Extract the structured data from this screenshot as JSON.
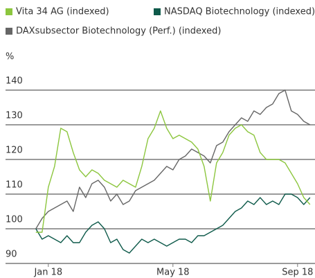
{
  "chart_data": {
    "type": "line",
    "y_unit": "%",
    "x": [
      -0.4,
      -0.2,
      0,
      0.2,
      0.4,
      0.6,
      0.8,
      1,
      1.2,
      1.4,
      1.6,
      1.8,
      2,
      2.2,
      2.4,
      2.6,
      2.8,
      3,
      3.2,
      3.4,
      3.6,
      3.8,
      4,
      4.2,
      4.4,
      4.6,
      4.8,
      5,
      5.2,
      5.4,
      5.6,
      5.8,
      6,
      6.2,
      6.4,
      6.6,
      6.8,
      7,
      7.2,
      7.4,
      7.6,
      7.8,
      8,
      8.2,
      8.4
    ],
    "series": [
      {
        "name": "Vita 34 AG (indexed)",
        "color": "#8cc63e",
        "values": [
          99,
          99,
          112,
          118,
          129,
          128,
          122,
          117,
          115,
          117,
          116,
          114,
          113,
          112,
          114,
          113,
          112,
          118,
          126,
          129,
          134,
          129,
          126,
          127,
          126,
          125,
          123,
          118,
          108,
          119,
          122,
          127,
          129,
          130,
          128,
          127,
          122,
          120,
          120,
          120,
          119,
          116,
          113,
          109,
          107
        ]
      },
      {
        "name": "NASDAQ Biotechnology (indexed)",
        "color": "#0e5a4a",
        "values": [
          100,
          97,
          98,
          97,
          96,
          98,
          96,
          96,
          99,
          101,
          102,
          100,
          96,
          97,
          94,
          93,
          95,
          97,
          96,
          97,
          96,
          95,
          96,
          97,
          97,
          96,
          98,
          98,
          99,
          100,
          101,
          103,
          105,
          106,
          108,
          107,
          109,
          107,
          108,
          107,
          110,
          110,
          109,
          107,
          109
        ]
      },
      {
        "name": "DAXsubsector Biotechnology (Perf.) (indexed)",
        "color": "#666666",
        "values": [
          100,
          103,
          105,
          106,
          107,
          108,
          105,
          112,
          109,
          113,
          114,
          112,
          108,
          110,
          107,
          108,
          111,
          112,
          113,
          114,
          116,
          118,
          117,
          120,
          121,
          123,
          122,
          121,
          119,
          124,
          125,
          128,
          130,
          132,
          131,
          134,
          133,
          135,
          136,
          139,
          140,
          134,
          133,
          131,
          130
        ]
      }
    ],
    "xlim": [
      -0.44,
      8.56
    ],
    "xticks": [
      {
        "value": 0,
        "label": "Jan 18"
      },
      {
        "value": 4,
        "label": "May 18"
      },
      {
        "value": 8,
        "label": "Sep 18"
      }
    ],
    "ylim": [
      90,
      140
    ],
    "yticks": [
      90,
      100,
      110,
      120,
      130,
      140
    ],
    "grid": true
  }
}
